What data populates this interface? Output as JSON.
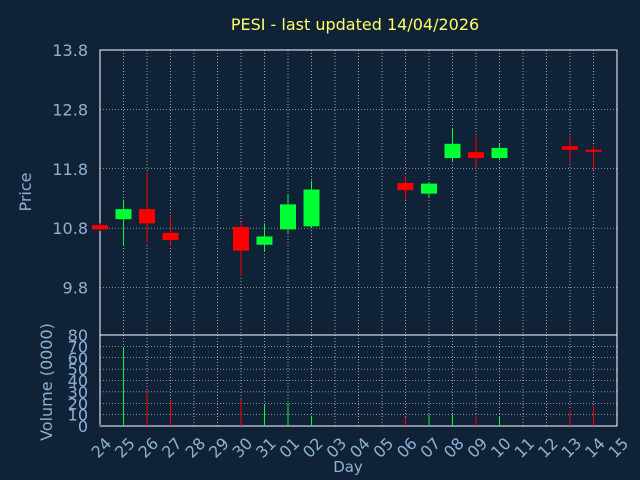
{
  "chart_data": [
    {
      "type": "candlestick",
      "title": "PESI - last updated 14/04/2026",
      "ylabel": "Price",
      "xlabel": "Day",
      "ylim": [
        9.0,
        13.8
      ],
      "y_ticks": [
        "13.8",
        "12.8",
        "11.8",
        "10.8",
        "9.8"
      ],
      "x_ticks": [
        "24",
        "25",
        "26",
        "27",
        "28",
        "29",
        "30",
        "31",
        "01",
        "02",
        "03",
        "04",
        "05",
        "06",
        "07",
        "08",
        "09",
        "10",
        "11",
        "12",
        "13",
        "14",
        "15"
      ],
      "grid": true,
      "candles": [
        {
          "day": "24",
          "open": 10.85,
          "close": 10.78,
          "high": 10.88,
          "low": 10.75
        },
        {
          "day": "25",
          "open": 10.95,
          "close": 11.12,
          "high": 11.28,
          "low": 10.5
        },
        {
          "day": "26",
          "open": 11.12,
          "close": 10.88,
          "high": 11.75,
          "low": 10.55
        },
        {
          "day": "27",
          "open": 10.72,
          "close": 10.6,
          "high": 11.02,
          "low": 10.5
        },
        {
          "day": "30",
          "open": 10.82,
          "close": 10.42,
          "high": 10.9,
          "low": 9.99
        },
        {
          "day": "31",
          "open": 10.52,
          "close": 10.66,
          "high": 10.88,
          "low": 10.4
        },
        {
          "day": "01",
          "open": 10.78,
          "close": 11.2,
          "high": 11.38,
          "low": 10.72
        },
        {
          "day": "02",
          "open": 10.83,
          "close": 11.45,
          "high": 11.6,
          "low": 10.8
        },
        {
          "day": "06",
          "open": 11.56,
          "close": 11.44,
          "high": 11.68,
          "low": 11.28
        },
        {
          "day": "07",
          "open": 11.38,
          "close": 11.55,
          "high": 11.58,
          "low": 11.32
        },
        {
          "day": "08",
          "open": 11.98,
          "close": 12.22,
          "high": 12.48,
          "low": 11.92
        },
        {
          "day": "09",
          "open": 12.08,
          "close": 11.98,
          "high": 12.35,
          "low": 11.82
        },
        {
          "day": "10",
          "open": 11.98,
          "close": 12.15,
          "high": 12.22,
          "low": 11.95
        },
        {
          "day": "13",
          "open": 12.18,
          "close": 12.12,
          "high": 12.35,
          "low": 11.9
        },
        {
          "day": "14",
          "open": 12.12,
          "close": 12.1,
          "high": 12.2,
          "low": 11.78
        }
      ],
      "colors": {
        "up": "#00ff33",
        "down": "#ff0000"
      }
    },
    {
      "type": "bar",
      "ylabel": "Volume (0000)",
      "ylim": [
        0,
        80
      ],
      "y_ticks": [
        "80",
        "70",
        "60",
        "50",
        "40",
        "30",
        "20",
        "10",
        "0"
      ],
      "categories": [
        "24",
        "25",
        "26",
        "27",
        "30",
        "31",
        "01",
        "02",
        "06",
        "07",
        "08",
        "09",
        "10",
        "13",
        "14"
      ],
      "values": [
        1,
        69,
        31,
        23,
        24,
        19,
        20,
        9,
        8,
        10,
        10,
        9,
        8,
        14,
        18
      ],
      "directions": [
        "down",
        "up",
        "down",
        "down",
        "down",
        "up",
        "up",
        "up",
        "down",
        "up",
        "up",
        "down",
        "up",
        "down",
        "down"
      ]
    }
  ]
}
